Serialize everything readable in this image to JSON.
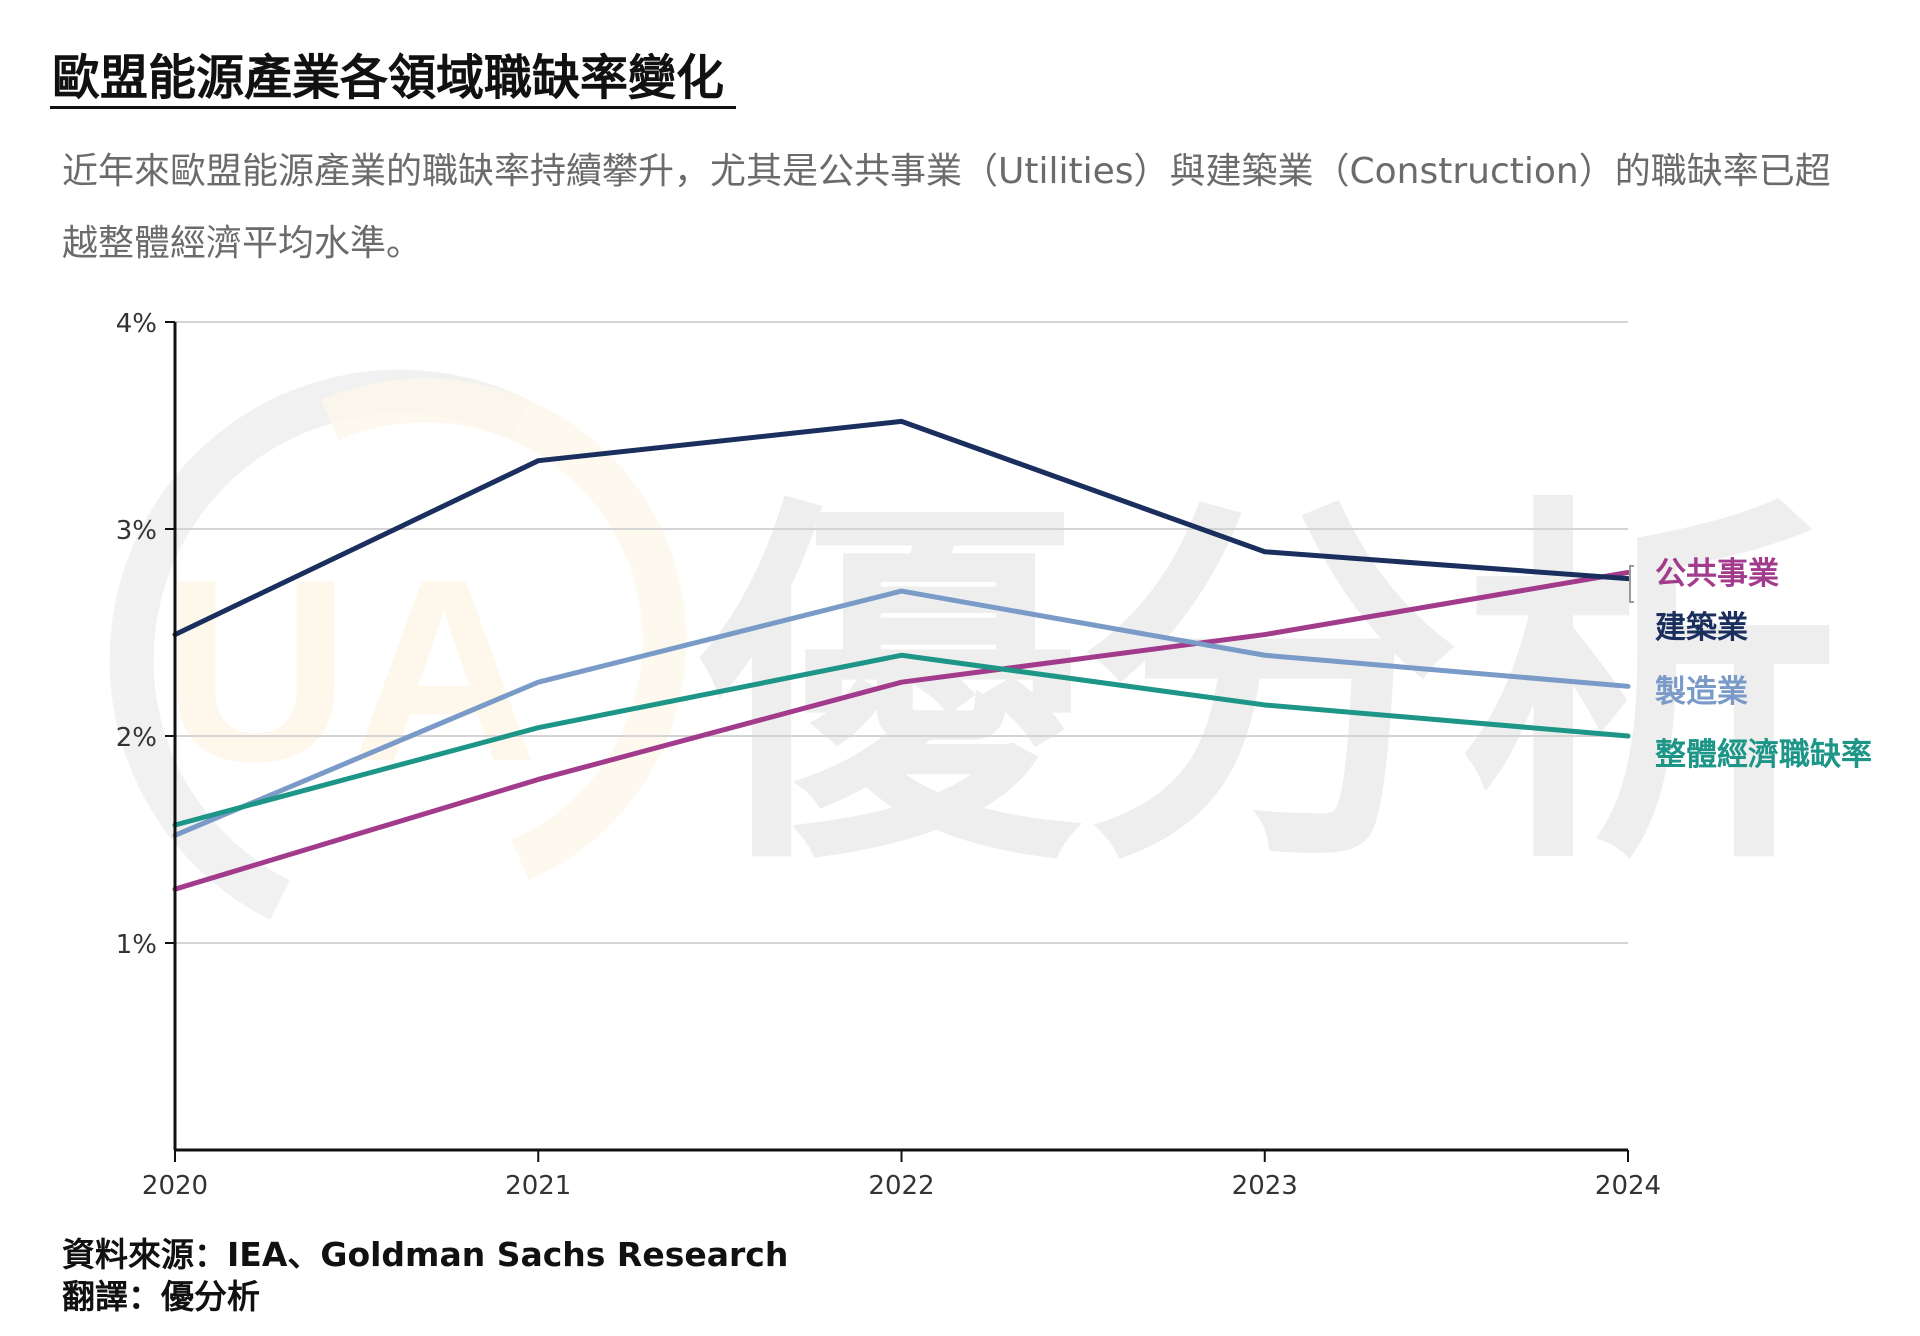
{
  "header": {
    "title": "歐盟能源產業各領域職缺率變化",
    "subtitle": "近年來歐盟能源產業的職缺率持續攀升，尤其是公共事業（Utilities）與建築業（Construction）的職缺率已超越整體經濟平均水準。"
  },
  "footer": {
    "source": "資料來源：IEA、Goldman Sachs Research",
    "translation": "翻譯：優分析"
  },
  "watermark": {
    "text": "優分析",
    "logo_letters": "UA"
  },
  "chart_data": {
    "type": "line",
    "x": [
      2020,
      2021,
      2022,
      2023,
      2024
    ],
    "xticks": [
      "2020",
      "2021",
      "2022",
      "2023",
      "2024"
    ],
    "ylim": [
      0,
      4
    ],
    "yticks": [
      {
        "value": 1,
        "label": "1%"
      },
      {
        "value": 2,
        "label": "2%"
      },
      {
        "value": 3,
        "label": "3%"
      },
      {
        "value": 4,
        "label": "4%"
      }
    ],
    "grid": true,
    "legend": "direct-labels-right",
    "series": [
      {
        "name": "公共事業",
        "color": "#a23b8c",
        "values": [
          1.26,
          1.79,
          2.26,
          2.49,
          2.79
        ]
      },
      {
        "name": "建築業",
        "color": "#1a2f5e",
        "values": [
          2.49,
          3.33,
          3.52,
          2.89,
          2.76
        ]
      },
      {
        "name": "製造業",
        "color": "#7a9ac8",
        "values": [
          1.52,
          2.26,
          2.7,
          2.39,
          2.24
        ]
      },
      {
        "name": "整體經濟職缺率",
        "color": "#1d9688",
        "values": [
          1.57,
          2.04,
          2.39,
          2.15,
          2.0
        ]
      }
    ]
  }
}
